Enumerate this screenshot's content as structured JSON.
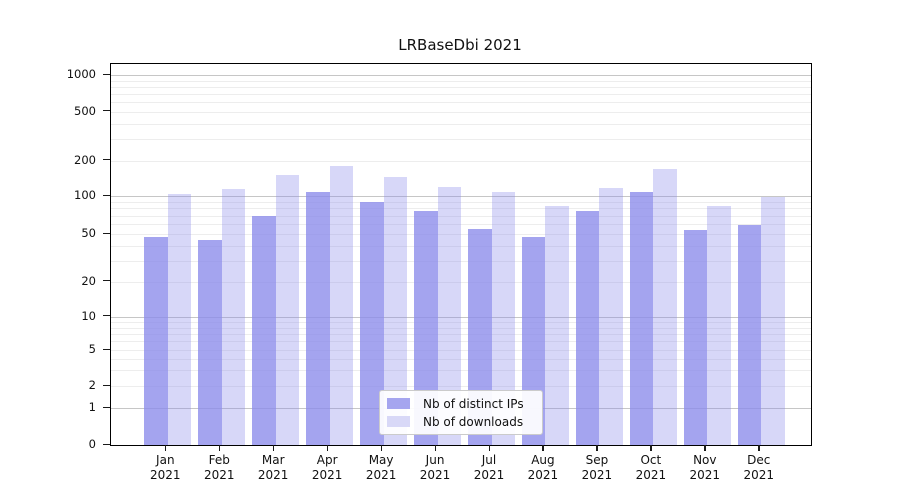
{
  "title": "LRBaseDbi 2021",
  "legend": {
    "items": [
      {
        "label": "Nb of distinct IPs",
        "color": "#a5a5ef"
      },
      {
        "label": "Nb of downloads",
        "color": "#d8d8f7"
      }
    ]
  },
  "chart_data": {
    "type": "bar",
    "title": "LRBaseDbi 2021",
    "xlabel": "",
    "ylabel": "",
    "scale": "log-like (symlog with 0 baseline)",
    "grid": "on (major lines at 1,10,100,1000; faint minors at 2-9 multiples)",
    "legend_position": "lower center",
    "categories": [
      "Jan 2021",
      "Feb 2021",
      "Mar 2021",
      "Apr 2021",
      "May 2021",
      "Jun 2021",
      "Jul 2021",
      "Aug 2021",
      "Sep 2021",
      "Oct 2021",
      "Nov 2021",
      "Dec 2021"
    ],
    "series": [
      {
        "name": "Nb of distinct IPs",
        "color_hex": "#a5a5ef",
        "color_rgba": "rgba(139,139,235,0.78)",
        "values": [
          47,
          45,
          70,
          109,
          90,
          76,
          55,
          47,
          76,
          109,
          54,
          59
        ]
      },
      {
        "name": "Nb of downloads",
        "color_hex": "#d8d8f7",
        "color_rgba": "rgba(139,139,235,0.34)",
        "values": [
          105,
          116,
          151,
          181,
          146,
          121,
          109,
          84,
          117,
          170,
          84,
          99
        ]
      }
    ],
    "y_ticks": [
      "0",
      "1",
      "2",
      "5",
      "10",
      "20",
      "50",
      "100",
      "200",
      "500",
      "1000"
    ],
    "ylim": [
      0,
      1300
    ]
  }
}
